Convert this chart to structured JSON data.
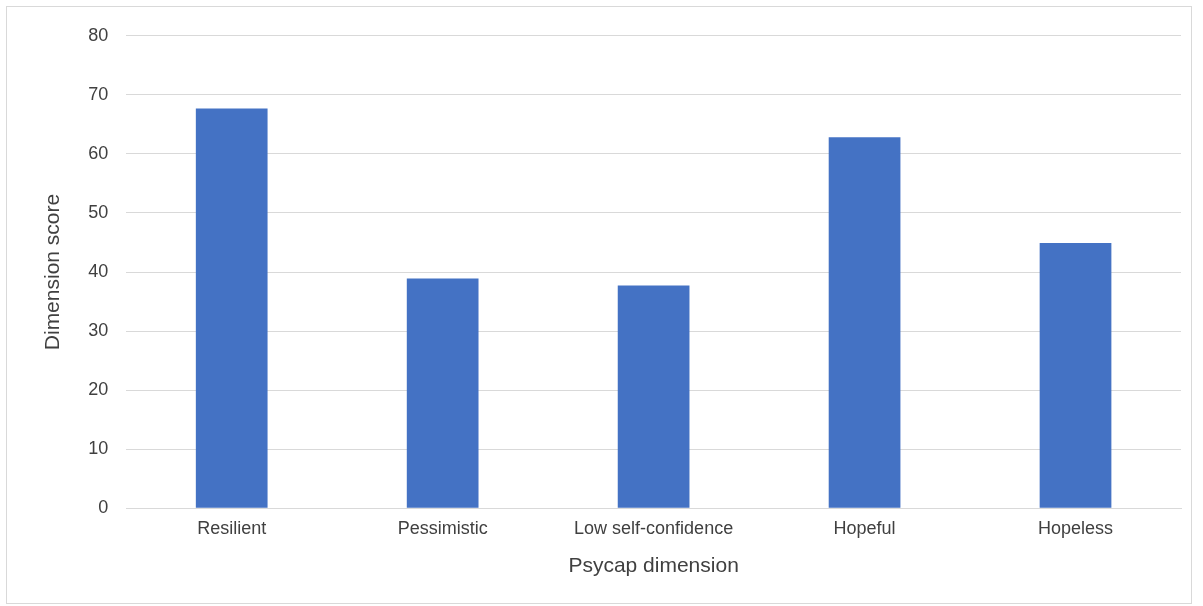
{
  "chart_data": {
    "type": "bar",
    "xlabel": "Psycap dimension",
    "ylabel": "Dimension score",
    "categories": [
      "Resilient",
      "Pessimistic",
      "Low self-confidence",
      "Hopeful",
      "Hopeless"
    ],
    "values": [
      67.7,
      38.9,
      37.7,
      62.8,
      44.9
    ],
    "color": "#4472c4",
    "ylim": [
      0,
      80
    ],
    "yticks": [
      0,
      10,
      20,
      30,
      40,
      50,
      60,
      70,
      80
    ],
    "grid": "y",
    "legend": false
  }
}
